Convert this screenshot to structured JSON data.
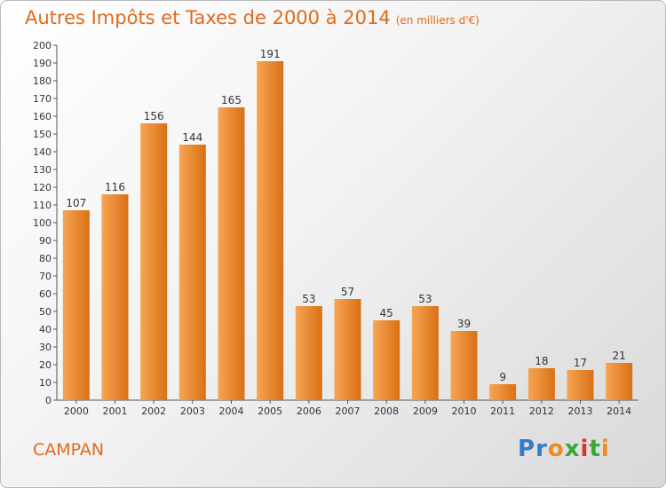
{
  "title": "Autres Impôts et Taxes de 2000 à 2014",
  "unit": "(en milliers d'€)",
  "commune": "CAMPAN",
  "logo": {
    "text": "Proxiti",
    "colors": [
      "#2f7fc7",
      "#2f7fc7",
      "#f08a1c",
      "#3aa63a",
      "#d6362b",
      "#3aa63a",
      "#f08a1c"
    ]
  },
  "colors": {
    "accent": "#e06a1e",
    "bar_light": "#f7a553",
    "bar_dark": "#d97015"
  },
  "chart_data": {
    "type": "bar",
    "title": "Autres Impôts et Taxes de 2000 à 2014",
    "xlabel": "",
    "ylabel": "",
    "categories": [
      "2000",
      "2001",
      "2002",
      "2003",
      "2004",
      "2005",
      "2006",
      "2007",
      "2008",
      "2009",
      "2010",
      "2011",
      "2012",
      "2013",
      "2014"
    ],
    "values": [
      107,
      116,
      156,
      144,
      165,
      191,
      53,
      57,
      45,
      53,
      39,
      9,
      18,
      17,
      21
    ],
    "ylim": [
      0,
      200
    ],
    "yticks": [
      0,
      10,
      20,
      30,
      40,
      50,
      60,
      70,
      80,
      90,
      100,
      110,
      120,
      130,
      140,
      150,
      160,
      170,
      180,
      190,
      200
    ],
    "grid": false,
    "legend": "none"
  }
}
